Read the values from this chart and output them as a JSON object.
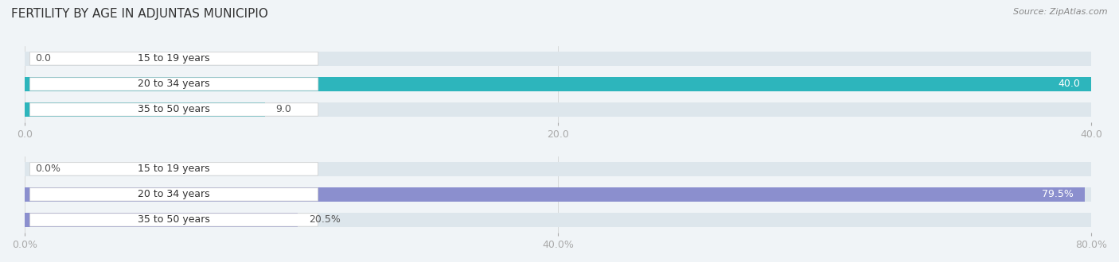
{
  "title": "FERTILITY BY AGE IN ADJUNTAS MUNICIPIO",
  "source": "Source: ZipAtlas.com",
  "label_color_inside": "#ffffff",
  "label_color_outside": "#555555",
  "label_fontsize": 9,
  "category_fontsize": 9,
  "title_fontsize": 11,
  "source_fontsize": 8,
  "bar_height": 0.55,
  "category_label_color": "#333333",
  "tick_color": "#aaaaaa",
  "grid_color": "#cccccc",
  "top_chart": {
    "categories": [
      "15 to 19 years",
      "20 to 34 years",
      "35 to 50 years"
    ],
    "values": [
      0.0,
      40.0,
      9.0
    ],
    "xlim": [
      0,
      40.0
    ],
    "xticks": [
      0.0,
      20.0,
      40.0
    ],
    "bar_color": "#2db5bc",
    "bg_color": "#dde6ec"
  },
  "bottom_chart": {
    "categories": [
      "15 to 19 years",
      "20 to 34 years",
      "35 to 50 years"
    ],
    "values": [
      0.0,
      79.5,
      20.5
    ],
    "xlim": [
      0,
      80.0
    ],
    "xticks": [
      0.0,
      40.0,
      80.0
    ],
    "bar_color": "#8b8fce",
    "bg_color": "#dde6ec"
  }
}
